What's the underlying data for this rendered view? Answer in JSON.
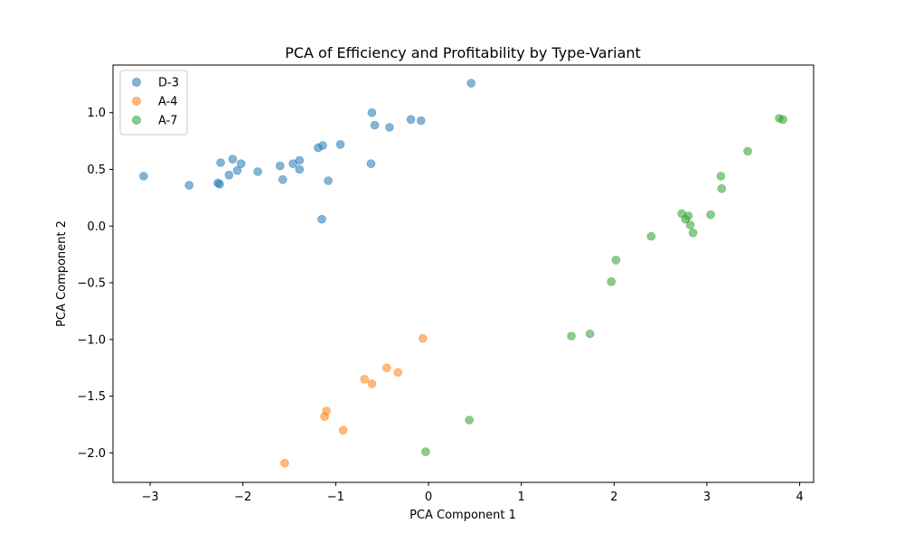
{
  "chart_data": {
    "type": "scatter",
    "title": "PCA of Efficiency and Profitability by Type-Variant",
    "xlabel": "PCA Component 1",
    "ylabel": "PCA Component 2",
    "xlim": [
      -3.4,
      4.15
    ],
    "ylim": [
      -2.26,
      1.42
    ],
    "xticks": [
      -3,
      -2,
      -1,
      0,
      1,
      2,
      3,
      4
    ],
    "xtick_labels": [
      "−3",
      "−2",
      "−1",
      "0",
      "1",
      "2",
      "3",
      "4"
    ],
    "yticks": [
      -2.0,
      -1.5,
      -1.0,
      -0.5,
      0.0,
      0.5,
      1.0
    ],
    "ytick_labels": [
      "−2.0",
      "−1.5",
      "−1.0",
      "−0.5",
      "0.0",
      "0.5",
      "1.0"
    ],
    "grid": false,
    "legend_position": "top-left",
    "series": [
      {
        "name": "D-3",
        "color": "#1f77b4",
        "points": [
          [
            -3.07,
            0.44
          ],
          [
            -2.58,
            0.36
          ],
          [
            -2.27,
            0.38
          ],
          [
            -2.25,
            0.37
          ],
          [
            -2.24,
            0.56
          ],
          [
            -2.15,
            0.45
          ],
          [
            -2.11,
            0.59
          ],
          [
            -2.06,
            0.49
          ],
          [
            -2.02,
            0.55
          ],
          [
            -1.84,
            0.48
          ],
          [
            -1.6,
            0.53
          ],
          [
            -1.57,
            0.41
          ],
          [
            -1.46,
            0.55
          ],
          [
            -1.39,
            0.58
          ],
          [
            -1.39,
            0.5
          ],
          [
            -1.19,
            0.69
          ],
          [
            -1.14,
            0.71
          ],
          [
            -1.15,
            0.06
          ],
          [
            -1.08,
            0.4
          ],
          [
            -0.95,
            0.72
          ],
          [
            -0.62,
            0.55
          ],
          [
            -0.61,
            1.0
          ],
          [
            -0.58,
            0.89
          ],
          [
            -0.42,
            0.87
          ],
          [
            -0.19,
            0.94
          ],
          [
            -0.08,
            0.93
          ],
          [
            0.46,
            1.26
          ]
        ]
      },
      {
        "name": "A-4",
        "color": "#ff7f0e",
        "points": [
          [
            -1.55,
            -2.09
          ],
          [
            -1.12,
            -1.68
          ],
          [
            -1.1,
            -1.63
          ],
          [
            -0.92,
            -1.8
          ],
          [
            -0.69,
            -1.35
          ],
          [
            -0.61,
            -1.39
          ],
          [
            -0.45,
            -1.25
          ],
          [
            -0.33,
            -1.29
          ],
          [
            -0.06,
            -0.99
          ]
        ]
      },
      {
        "name": "A-7",
        "color": "#2ca02c",
        "points": [
          [
            -0.03,
            -1.99
          ],
          [
            0.44,
            -1.71
          ],
          [
            1.54,
            -0.97
          ],
          [
            1.74,
            -0.95
          ],
          [
            1.97,
            -0.49
          ],
          [
            2.02,
            -0.3
          ],
          [
            2.4,
            -0.09
          ],
          [
            2.73,
            0.11
          ],
          [
            2.77,
            0.06
          ],
          [
            2.8,
            0.09
          ],
          [
            2.82,
            0.01
          ],
          [
            2.85,
            -0.06
          ],
          [
            3.04,
            0.1
          ],
          [
            3.15,
            0.44
          ],
          [
            3.16,
            0.33
          ],
          [
            3.44,
            0.66
          ],
          [
            3.78,
            0.95
          ],
          [
            3.82,
            0.94
          ]
        ]
      }
    ]
  }
}
